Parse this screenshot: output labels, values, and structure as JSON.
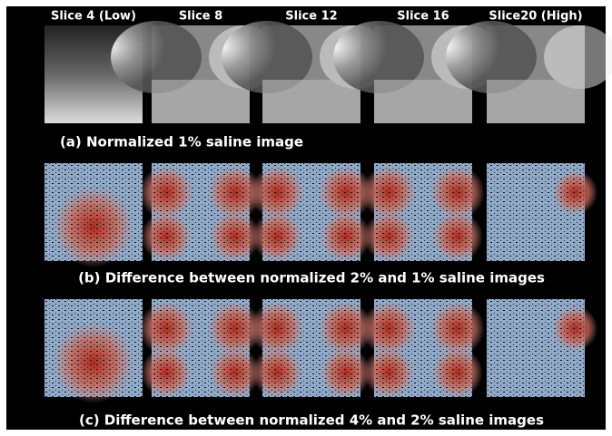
{
  "columns": [
    "Slice 4 (Low)",
    "Slice 8",
    "Slice 12",
    "Slice 16",
    "Slice20 (High)"
  ],
  "rows": [
    {
      "caption": "(a) Normalized 1% saline image"
    },
    {
      "caption": "(b) Difference between normalized 2% and 1% saline images"
    },
    {
      "caption": "(c) Difference between normalized 4% and 2% saline images"
    }
  ]
}
